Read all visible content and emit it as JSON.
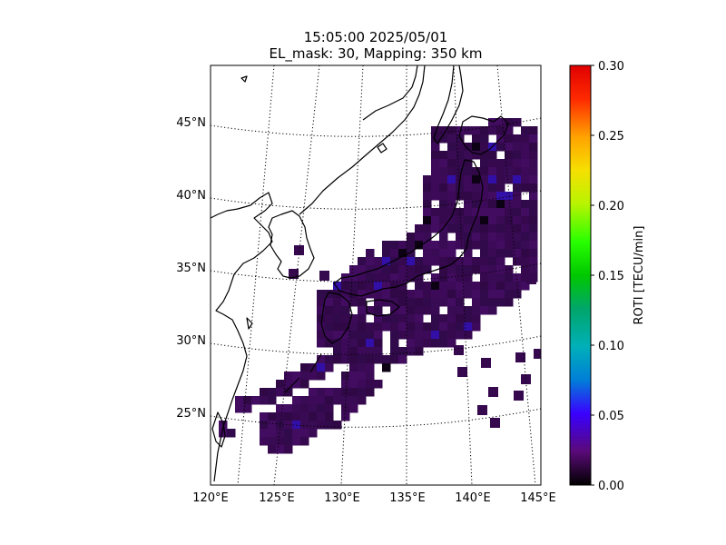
{
  "title": {
    "line1": "15:05:00 2025/05/01",
    "line2": "EL_mask: 30, Mapping: 350 km"
  },
  "map": {
    "lon_ticks": [
      "120°E",
      "125°E",
      "130°E",
      "135°E",
      "140°E",
      "145°E"
    ],
    "lat_ticks": [
      "25°N",
      "30°N",
      "35°N",
      "40°N",
      "45°N"
    ],
    "lon_range": [
      120,
      145
    ],
    "lat_range": [
      20,
      49
    ],
    "graticule": "dotted"
  },
  "colorbar": {
    "label": "ROTI [TECU/min]",
    "ticks": [
      "0.00",
      "0.05",
      "0.10",
      "0.15",
      "0.20",
      "0.25",
      "0.30"
    ],
    "range": [
      0,
      0.3
    ],
    "colormap": "nipy_spectral"
  },
  "colors": {
    "data_fill": "#36094f",
    "coastline": "#000000"
  }
}
